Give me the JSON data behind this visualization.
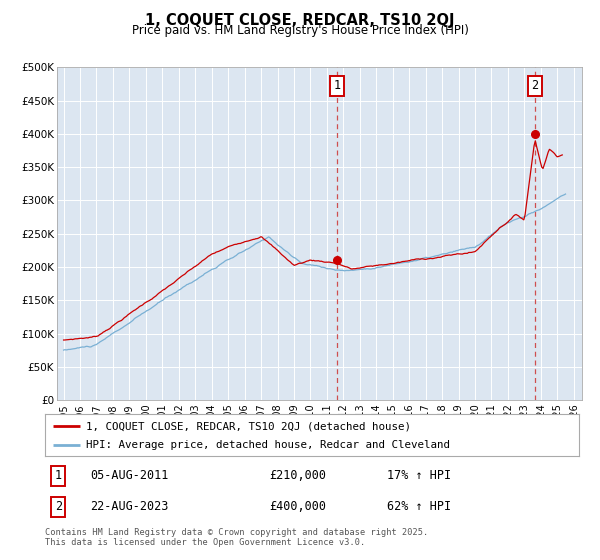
{
  "title": "1, COQUET CLOSE, REDCAR, TS10 2QJ",
  "subtitle": "Price paid vs. HM Land Registry's House Price Index (HPI)",
  "ylim": [
    0,
    500000
  ],
  "xlim": [
    1994.6,
    2026.5
  ],
  "yticks": [
    0,
    50000,
    100000,
    150000,
    200000,
    250000,
    300000,
    350000,
    400000,
    450000,
    500000
  ],
  "ytick_labels": [
    "£0",
    "£50K",
    "£100K",
    "£150K",
    "£200K",
    "£250K",
    "£300K",
    "£350K",
    "£400K",
    "£450K",
    "£500K"
  ],
  "xticks": [
    1995,
    1996,
    1997,
    1998,
    1999,
    2000,
    2001,
    2002,
    2003,
    2004,
    2005,
    2006,
    2007,
    2008,
    2009,
    2010,
    2011,
    2012,
    2013,
    2014,
    2015,
    2016,
    2017,
    2018,
    2019,
    2020,
    2021,
    2022,
    2023,
    2024,
    2025,
    2026
  ],
  "background_color": "#ffffff",
  "plot_bg_color": "#dce6f1",
  "grid_color": "#ffffff",
  "sale1_date": 2011.6,
  "sale1_price": 210000,
  "sale2_date": 2023.64,
  "sale2_price": 400000,
  "legend_entries": [
    {
      "label": "1, COQUET CLOSE, REDCAR, TS10 2QJ (detached house)",
      "color": "#cc0000"
    },
    {
      "label": "HPI: Average price, detached house, Redcar and Cleveland",
      "color": "#7ab0d4"
    }
  ],
  "annotation1_date": "05-AUG-2011",
  "annotation1_price": "£210,000",
  "annotation1_hpi": "17% ↑ HPI",
  "annotation2_date": "22-AUG-2023",
  "annotation2_price": "£400,000",
  "annotation2_hpi": "62% ↑ HPI",
  "footer": "Contains HM Land Registry data © Crown copyright and database right 2025.\nThis data is licensed under the Open Government Licence v3.0.",
  "red_color": "#cc0000",
  "blue_color": "#7ab0d4",
  "vline_color": "#cc3333"
}
